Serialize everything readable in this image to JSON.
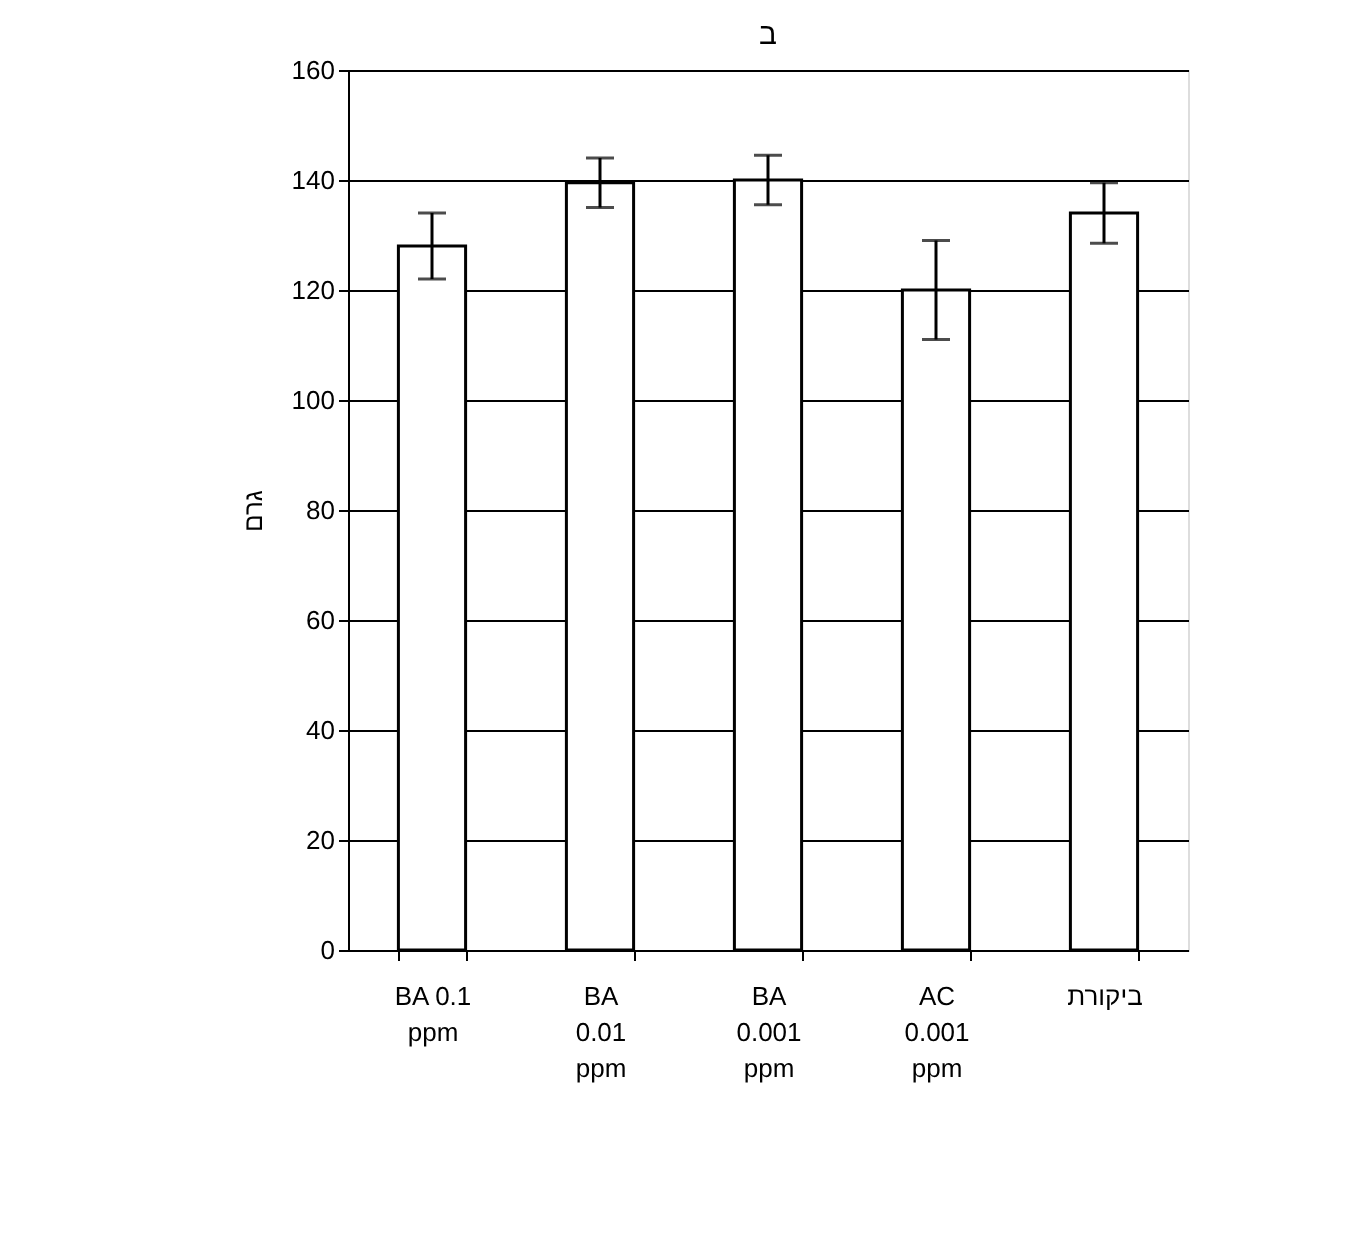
{
  "chart_data": {
    "type": "bar",
    "title": "ב",
    "ylabel": "גרם",
    "categories": [
      "BA 0.1 ppm",
      "BA 0.01 ppm",
      "BA 0.001 ppm",
      "AC 0.001 ppm",
      "ביקורת"
    ],
    "values": [
      128,
      139.5,
      140,
      120,
      134
    ],
    "errors": [
      6,
      4.5,
      4.5,
      9,
      5.5
    ],
    "color": "#ffffff",
    "ylim": [
      0,
      160
    ],
    "yticks": [
      0,
      20,
      40,
      60,
      80,
      100,
      120,
      140,
      160
    ],
    "grid": "y"
  }
}
